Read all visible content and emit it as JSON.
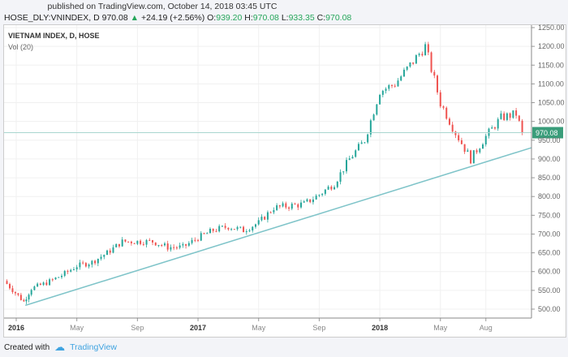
{
  "header": {
    "published": "published on TradingView.com, October 14, 2018 03:45 UTC",
    "symbol": "HOSE_DLY:VNINDEX, D",
    "last": "970.08",
    "change": "+24.19 (+2.56%)",
    "o_label": "O:",
    "o": "939.20",
    "h_label": "H:",
    "h": "970.08",
    "l_label": "L:",
    "l": "933.35",
    "c_label": "C:",
    "c": "970.08"
  },
  "legend": {
    "title": "VIETNAM INDEX, D, HOSE",
    "vol": "Vol (20)"
  },
  "footer": {
    "created": "Created with",
    "brand": "TradingView"
  },
  "colors": {
    "up": "#26a69a",
    "down": "#ef5350",
    "trend": "#7fc4c9",
    "price_tag": "#3a9d7a"
  },
  "chart_data": {
    "type": "candlestick",
    "title": "VIETNAM INDEX, D, HOSE",
    "ylim": [
      500,
      1250
    ],
    "yticks": [
      1250,
      1200,
      1150,
      1100,
      1050,
      1000,
      950,
      900,
      850,
      800,
      750,
      700,
      650,
      600,
      550,
      500
    ],
    "ytick_labels": [
      "1250.00",
      "1200.00",
      "1150.00",
      "1100.00",
      "1050.00",
      "1000.00",
      "950.00",
      "900.00",
      "850.00",
      "800.00",
      "750.00",
      "700.00",
      "650.00",
      "600.00",
      "550.00",
      "500.00"
    ],
    "xticks": [
      {
        "label": "2016",
        "month": 0,
        "bold": true
      },
      {
        "label": "May",
        "month": 4
      },
      {
        "label": "Sep",
        "month": 8
      },
      {
        "label": "2017",
        "month": 12,
        "bold": true
      },
      {
        "label": "May",
        "month": 16
      },
      {
        "label": "Sep",
        "month": 20
      },
      {
        "label": "2018",
        "month": 24,
        "bold": true
      },
      {
        "label": "May",
        "month": 28
      },
      {
        "label": "Aug",
        "month": 31
      }
    ],
    "series_months": [
      -0.8,
      0.5,
      1,
      2,
      3,
      4,
      5,
      6,
      7,
      8,
      9,
      10,
      11,
      12,
      13,
      14,
      15,
      16,
      17,
      18,
      19,
      20,
      21,
      22,
      23,
      24,
      25,
      26,
      27,
      28,
      29,
      30,
      31,
      32,
      33,
      33.4
    ],
    "series_close": [
      575,
      520,
      555,
      570,
      590,
      615,
      625,
      650,
      680,
      680,
      680,
      665,
      665,
      690,
      710,
      720,
      710,
      730,
      770,
      775,
      780,
      805,
      835,
      900,
      950,
      1080,
      1100,
      1150,
      1200,
      1050,
      970,
      900,
      960,
      1010,
      1020,
      970
    ],
    "last_price": 970.08,
    "last_price_label": "970.08",
    "trendline": [
      {
        "month": 0.6,
        "value": 510
      },
      {
        "month": 34.5,
        "value": 930
      }
    ]
  }
}
